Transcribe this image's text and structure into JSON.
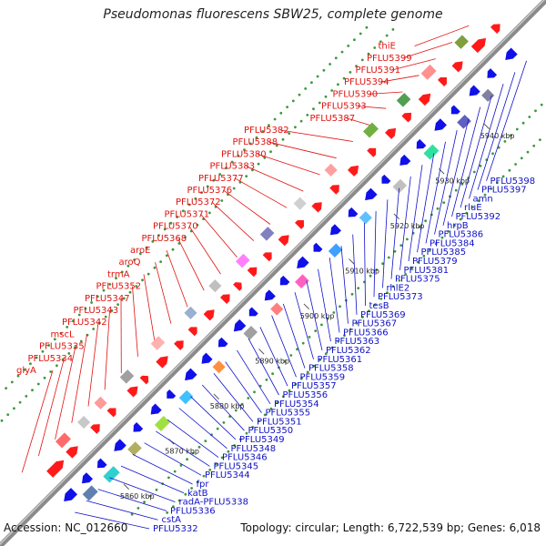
{
  "title": "Pseudomonas fluorescens SBW25, complete genome",
  "accession_label": "Accession: NC_012660",
  "summary_label": "Topology: circular; Length: 6,722,539 bp; Genes: 6,018",
  "kbp_ticks": [
    "5860 kbp",
    "5870 kbp",
    "5880 kbp",
    "5890 kbp",
    "5900 kbp",
    "5910 kbp",
    "5920 kbp",
    "5930 kbp",
    "5940 kbp"
  ],
  "forward_genes": [
    "glyA",
    "PFLU5334",
    "PFLU5335",
    "mscL",
    "PFLU5342",
    "PFLU5343",
    "PFLU5347",
    "PFLU5352",
    "trmA",
    "aroQ",
    "aroE",
    "PFLU5368",
    "PFLU5370",
    "PFLU5371",
    "PFLU5372",
    "PFLU5376",
    "PFLU5377",
    "PFLU5383",
    "PFLU5380",
    "PFLU5388",
    "PFLU5382",
    "PFLU5387",
    "PFLU5393",
    "PFLU5390",
    "PFLU5394",
    "PFLU5391",
    "PFLU5399",
    "thiE"
  ],
  "reverse_genes": [
    "PFLU5332",
    "cstA",
    "PFLU5336",
    "radA-PFLU5338",
    "katB",
    "fpr",
    "PFLU5344",
    "PFLU5345",
    "PFLU5346",
    "PFLU5348",
    "PFLU5349",
    "PFLU5350",
    "PFLU5351",
    "PFLU5355",
    "PFLU5354",
    "PFLU5356",
    "PFLU5357",
    "PFLU5359",
    "PFLU5358",
    "PFLU5361",
    "PFLU5362",
    "PFLU5363",
    "PFLU5366",
    "PFLU5367",
    "PFLU5369",
    "tesB",
    "PFLU5373",
    "rhlE2",
    "PFLU5375",
    "PFLU5381",
    "PFLU5379",
    "PFLU5385",
    "PFLU5384",
    "PFLU5386",
    "hrpB",
    "PFLU5392",
    "rluE",
    "amn",
    "PFLU5397",
    "PFLU5398"
  ],
  "colors": {
    "backbone": "#8a8a8a",
    "forward_label": "#e0120f",
    "reverse_label": "#1010c8",
    "cds_forward": "#ff1a1a",
    "cds_reverse": "#1010e8",
    "gc_dots": "#3a9a3a"
  }
}
